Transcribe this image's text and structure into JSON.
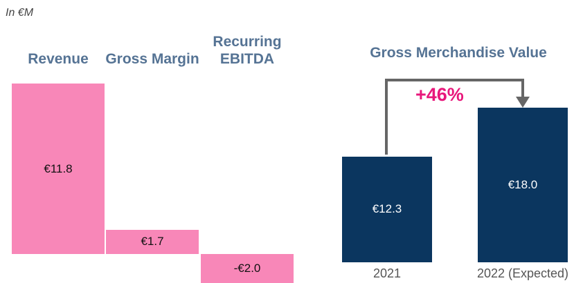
{
  "chart_data": [
    {
      "type": "bar",
      "subtitle": "In €M",
      "categories": [
        "Revenue",
        "Gross Margin",
        "Recurring EBITDA"
      ],
      "values": [
        11.8,
        1.7,
        -2.0
      ],
      "value_labels": [
        "€11.8",
        "€1.7",
        "-€2.0"
      ],
      "color": "#f887b8",
      "ylim": [
        -2.0,
        11.8
      ]
    },
    {
      "type": "bar",
      "title": "Gross Merchandise Value",
      "categories": [
        "2021",
        "2022 (Expected)"
      ],
      "values": [
        12.3,
        18.0
      ],
      "value_labels": [
        "€12.3",
        "€18.0"
      ],
      "color": "#0b365f",
      "ylim": [
        0,
        18.0
      ],
      "annotation": "+46%"
    }
  ]
}
